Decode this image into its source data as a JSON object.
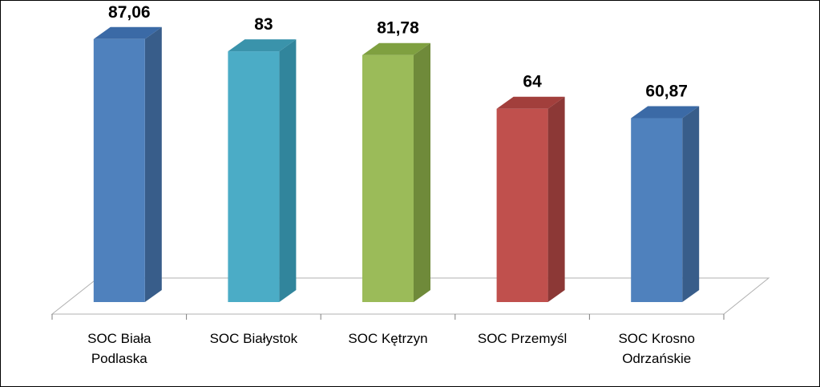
{
  "chart_data": {
    "type": "bar",
    "title": "",
    "xlabel": "",
    "ylabel": "",
    "categories": [
      [
        "SOC Biała",
        "Podlaska"
      ],
      [
        "SOC Białystok"
      ],
      [
        "SOC Kętrzyn"
      ],
      [
        "SOC Przemyśl"
      ],
      [
        "SOC Krosno",
        "Odrzańskie"
      ]
    ],
    "values": [
      87.06,
      83,
      81.78,
      64,
      60.87
    ],
    "value_labels": [
      "87,06",
      "83",
      "81,78",
      "64",
      "60,87"
    ],
    "ylim": [
      0,
      100
    ],
    "grid": false,
    "legend": "none",
    "bar_colors": [
      {
        "front": "#4f81bd",
        "side": "#385d8a",
        "top": "#3b6aa6"
      },
      {
        "front": "#4bacc6",
        "side": "#31859c",
        "top": "#3a93ab"
      },
      {
        "front": "#9bbb59",
        "side": "#6f8a3a",
        "top": "#7fa040"
      },
      {
        "front": "#c0504d",
        "side": "#8c3836",
        "top": "#a23f3c"
      },
      {
        "front": "#4f81bd",
        "side": "#385d8a",
        "top": "#3b6aa6"
      }
    ],
    "floor_color": "#ffffff",
    "axis_color": "#7f7f7f"
  }
}
